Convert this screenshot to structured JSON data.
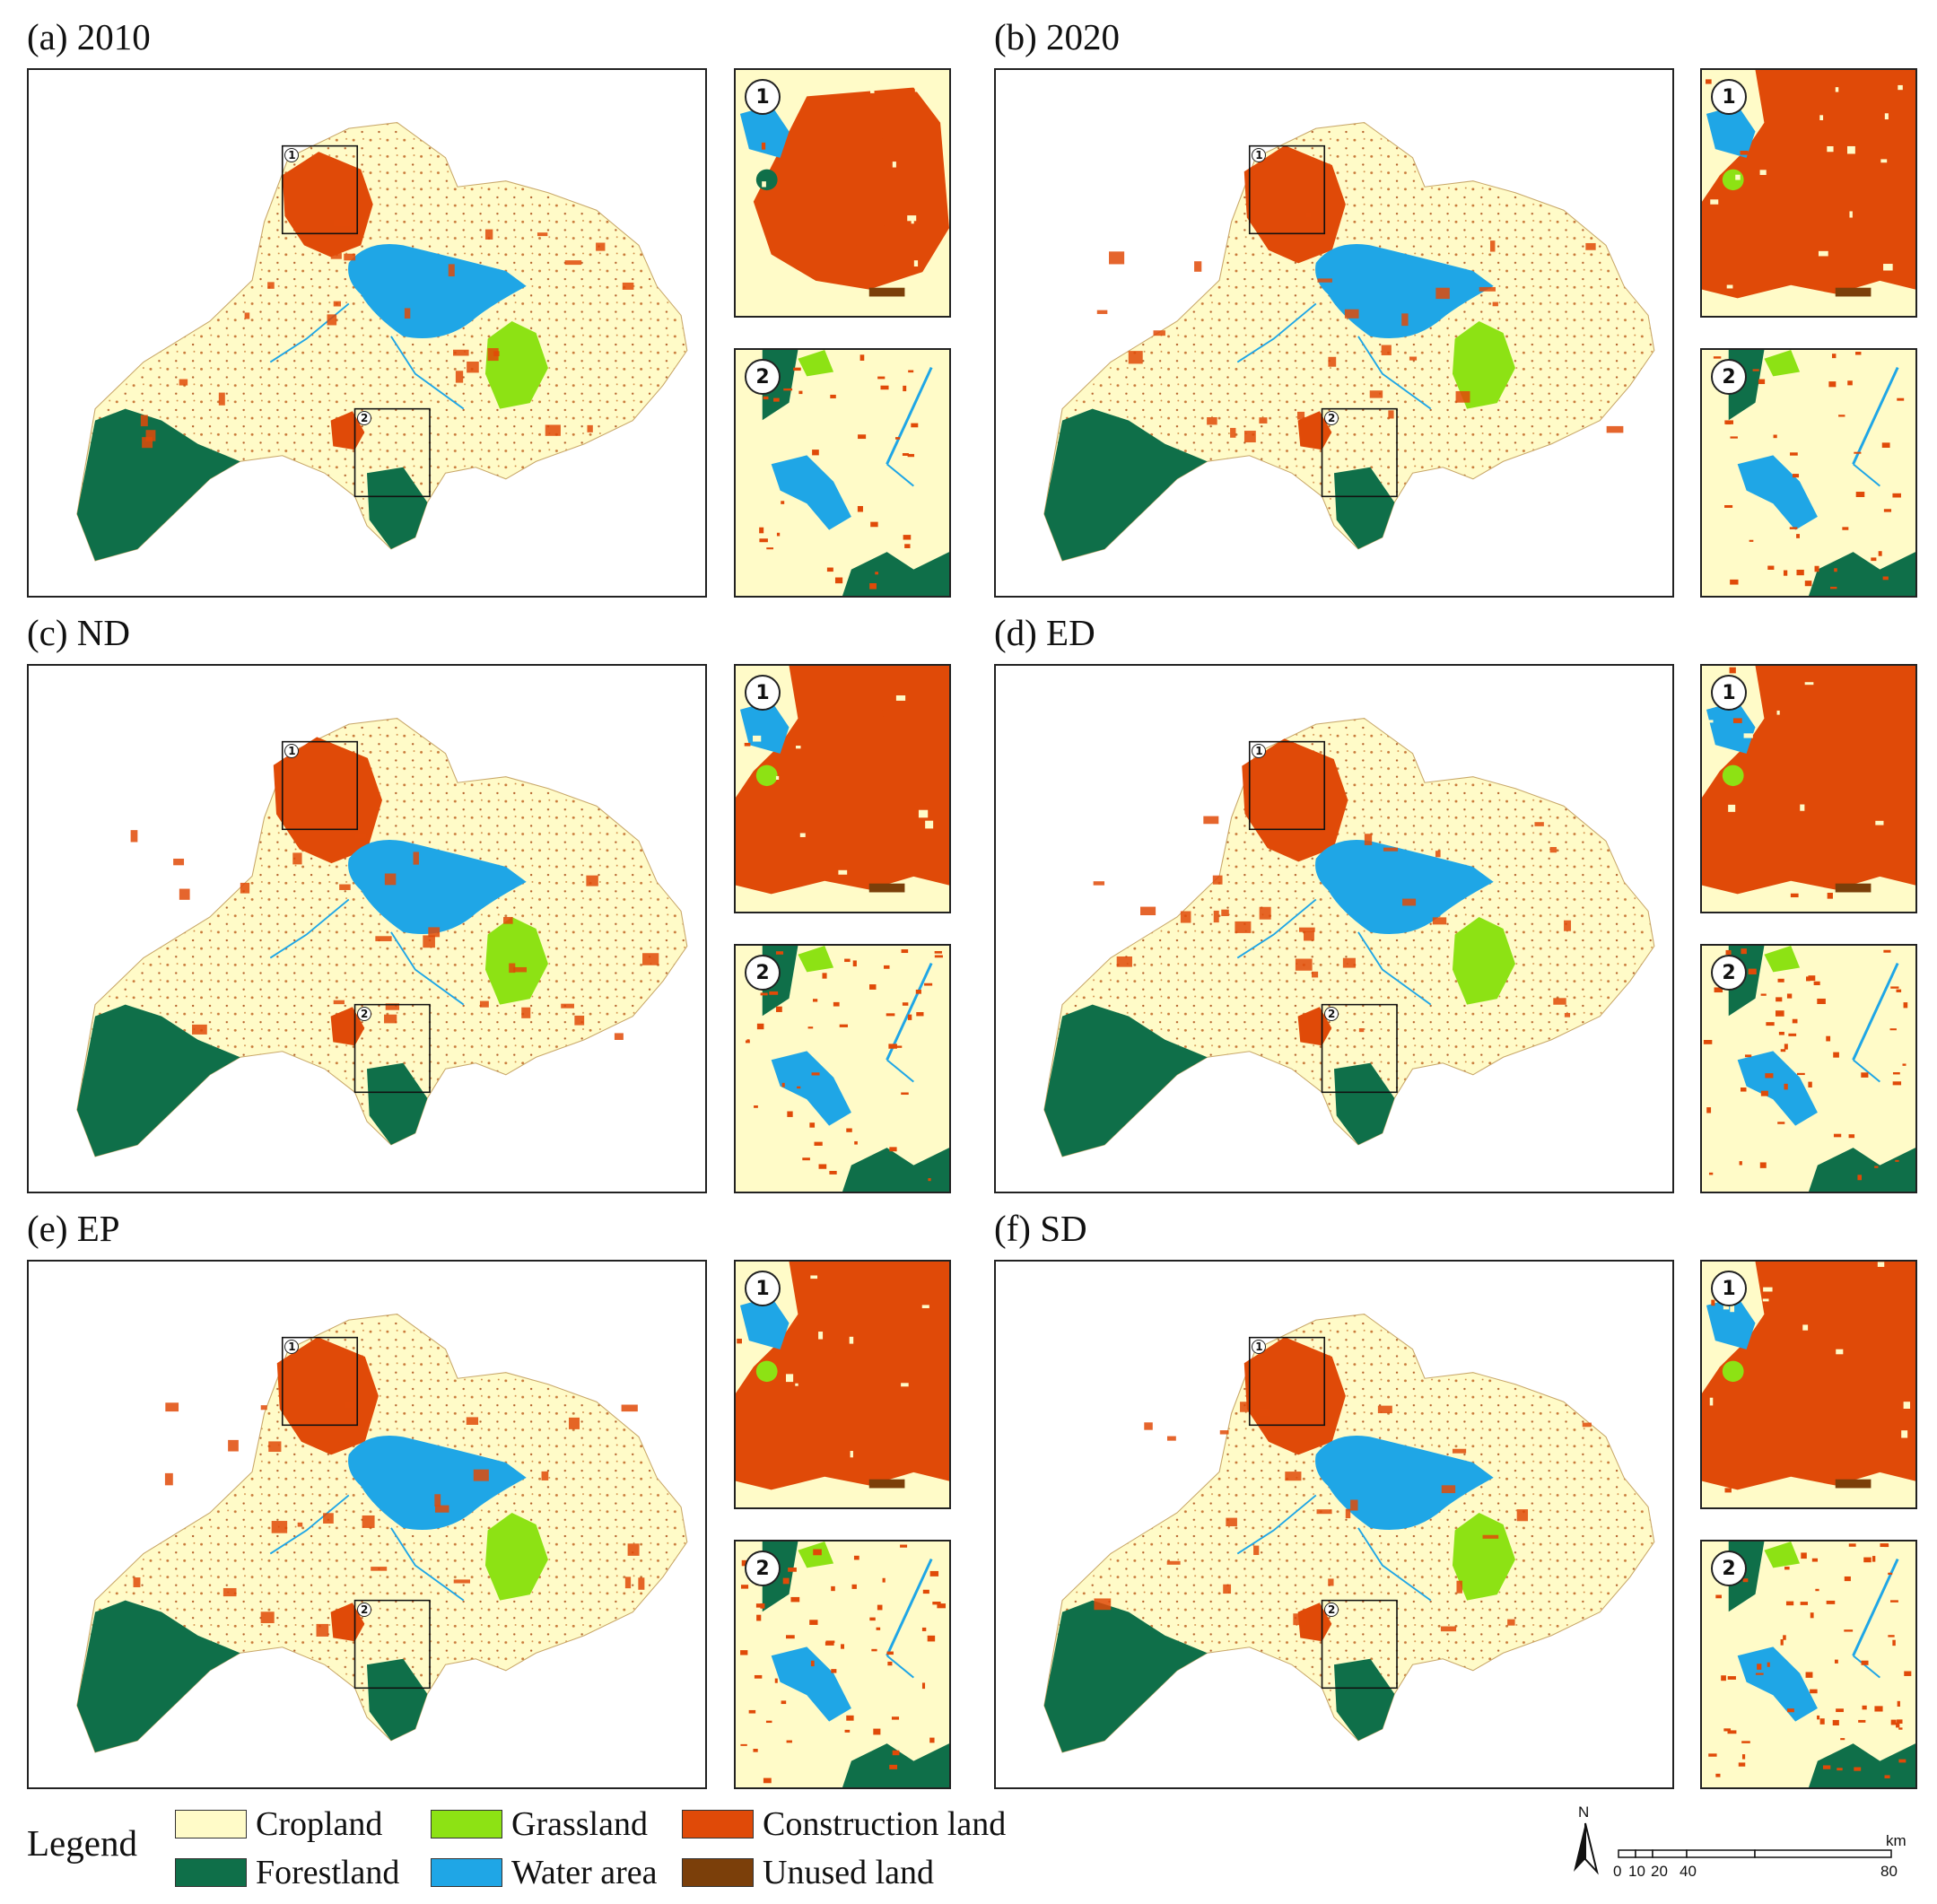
{
  "panels": [
    {
      "id": "a",
      "title": "(a) 2010"
    },
    {
      "id": "b",
      "title": "(b) 2020"
    },
    {
      "id": "c",
      "title": "(c) ND"
    },
    {
      "id": "d",
      "title": "(d) ED"
    },
    {
      "id": "e",
      "title": "(e) EP"
    },
    {
      "id": "f",
      "title": "(f) SD"
    }
  ],
  "inset_labels": [
    "1",
    "2"
  ],
  "legend": {
    "title": "Legend",
    "items": [
      {
        "label": "Cropland",
        "color": "#fffbc8"
      },
      {
        "label": "Grassland",
        "color": "#8de214"
      },
      {
        "label": "Construction land",
        "color": "#e04a08"
      },
      {
        "label": "Forestland",
        "color": "#0f6f49"
      },
      {
        "label": "Water area",
        "color": "#1fa6e6"
      },
      {
        "label": "Unused land",
        "color": "#7b3f0a"
      }
    ]
  },
  "north_arrow": {
    "label": "N"
  },
  "scale": {
    "unit": "km",
    "ticks": [
      "0",
      "10",
      "20",
      "40",
      "80"
    ]
  }
}
